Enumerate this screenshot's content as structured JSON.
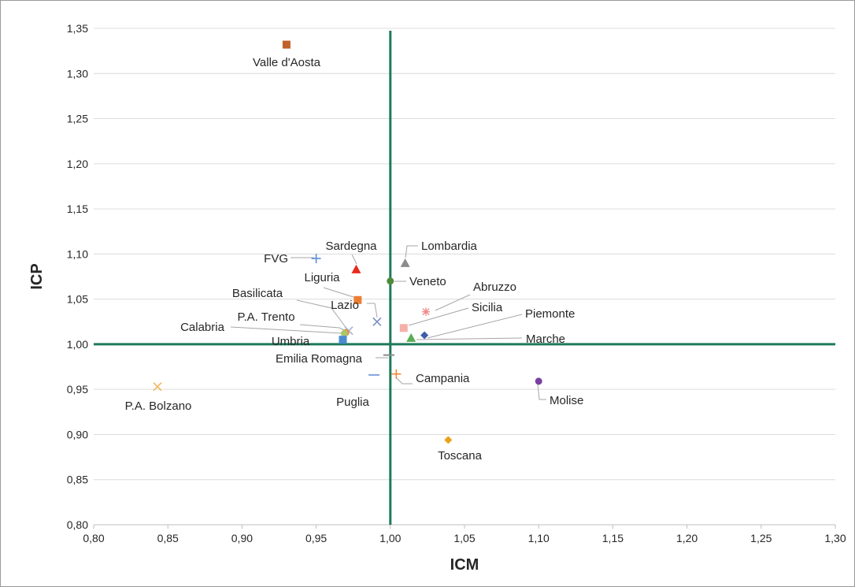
{
  "chart_data": {
    "type": "scatter",
    "title": "",
    "xlabel": "ICM",
    "ylabel": "ICP",
    "xlim": [
      0.8,
      1.3
    ],
    "ylim": [
      0.8,
      1.35
    ],
    "xticks": [
      "0,80",
      "0,85",
      "0,90",
      "0,95",
      "1,00",
      "1,05",
      "1,10",
      "1,15",
      "1,20",
      "1,25",
      "1,30"
    ],
    "yticks": [
      "0,80",
      "0,85",
      "0,90",
      "0,95",
      "1,00",
      "1,05",
      "1,10",
      "1,15",
      "1,20",
      "1,25",
      "1,30",
      "1,35"
    ],
    "grid": "horizontal",
    "legend": "none",
    "reference_lines": {
      "x": 1.0,
      "y": 1.0,
      "color": "#1e7a5a"
    },
    "points": [
      {
        "label": "Valle d'Aosta",
        "x": 0.93,
        "y": 1.332,
        "marker": "square",
        "color": "#c0622b"
      },
      {
        "label": "FVG",
        "x": 0.95,
        "y": 1.095,
        "marker": "plus",
        "color": "#5b8fd6"
      },
      {
        "label": "Sardegna",
        "x": 0.977,
        "y": 1.083,
        "marker": "triangle",
        "color": "#e8291c"
      },
      {
        "label": "Lombardia",
        "x": 1.01,
        "y": 1.09,
        "marker": "triangle",
        "color": "#8c8c8c"
      },
      {
        "label": "Veneto",
        "x": 1.0,
        "y": 1.07,
        "marker": "circle",
        "color": "#4e8a3c"
      },
      {
        "label": "Liguria",
        "x": 0.978,
        "y": 1.049,
        "marker": "square",
        "color": "#ed7d31"
      },
      {
        "label": "Abruzzo",
        "x": 1.024,
        "y": 1.036,
        "marker": "star",
        "color": "#f08a8a"
      },
      {
        "label": "Lazio",
        "x": 0.991,
        "y": 1.025,
        "marker": "x",
        "color": "#7a8fc4"
      },
      {
        "label": "Sicilia",
        "x": 1.009,
        "y": 1.018,
        "marker": "square",
        "color": "#f4b0a8"
      },
      {
        "label": "Basilicata",
        "x": 0.972,
        "y": 1.015,
        "marker": "x",
        "color": "#9fb3d9"
      },
      {
        "label": "P.A. Trento",
        "x": 0.97,
        "y": 1.013,
        "marker": "circle",
        "color": "#f08a3c"
      },
      {
        "label": "Calabria",
        "x": 0.969,
        "y": 1.012,
        "marker": "circle",
        "color": "#a9c86a"
      },
      {
        "label": "Piemonte",
        "x": 1.023,
        "y": 1.01,
        "marker": "diamond",
        "color": "#3d5fa8"
      },
      {
        "label": "Marche",
        "x": 1.014,
        "y": 1.007,
        "marker": "triangle",
        "color": "#5aad52"
      },
      {
        "label": "Umbria",
        "x": 0.968,
        "y": 1.005,
        "marker": "square",
        "color": "#4a8bd1"
      },
      {
        "label": "Emilia Romagna",
        "x": 0.999,
        "y": 0.988,
        "marker": "dash",
        "color": "#8c8c8c"
      },
      {
        "label": "Campania",
        "x": 1.004,
        "y": 0.967,
        "marker": "plus",
        "color": "#f08a3c"
      },
      {
        "label": "Puglia",
        "x": 0.989,
        "y": 0.966,
        "marker": "dash",
        "color": "#7fa3d9"
      },
      {
        "label": "Molise",
        "x": 1.1,
        "y": 0.959,
        "marker": "circle",
        "color": "#7a3fa0"
      },
      {
        "label": "P.A. Bolzano",
        "x": 0.843,
        "y": 0.953,
        "marker": "x",
        "color": "#f0b85a"
      },
      {
        "label": "Toscana",
        "x": 1.039,
        "y": 0.894,
        "marker": "diamond",
        "color": "#e8a317"
      }
    ]
  }
}
